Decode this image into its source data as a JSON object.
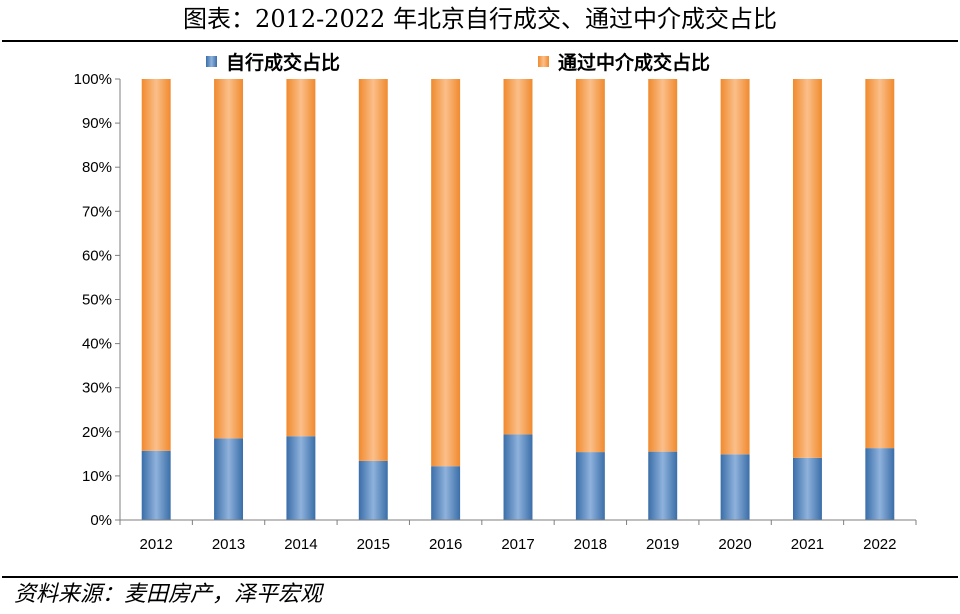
{
  "title": "图表：2012-2022 年北京自行成交、通过中介成交占比",
  "source": "资料来源：麦田房产，泽平宏观",
  "colors": {
    "self": "#4f81bd",
    "agency": "#f79646"
  },
  "chart_data": {
    "type": "bar",
    "stacked": true,
    "percent": true,
    "categories": [
      "2012",
      "2013",
      "2014",
      "2015",
      "2016",
      "2017",
      "2018",
      "2019",
      "2020",
      "2021",
      "2022"
    ],
    "series": [
      {
        "name": "自行成交占比",
        "values": [
          15.7,
          18.5,
          19.0,
          13.4,
          12.2,
          19.4,
          15.4,
          15.5,
          14.9,
          14.1,
          16.3
        ]
      },
      {
        "name": "通过中介成交占比",
        "values": [
          84.3,
          81.5,
          81.0,
          86.6,
          87.8,
          80.6,
          84.6,
          84.5,
          85.1,
          85.9,
          83.7
        ]
      }
    ],
    "yticks": [
      "0%",
      "10%",
      "20%",
      "30%",
      "40%",
      "50%",
      "60%",
      "70%",
      "80%",
      "90%",
      "100%"
    ],
    "ylim": [
      0,
      100
    ],
    "legend": "top",
    "grid": false
  }
}
